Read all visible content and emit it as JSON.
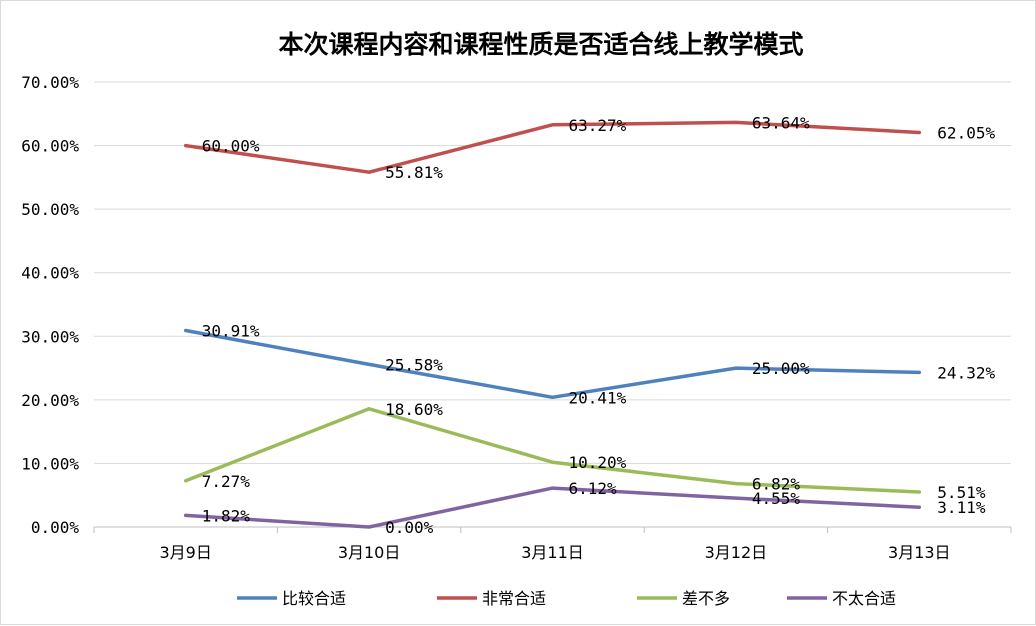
{
  "chart_data": {
    "type": "line",
    "title": "本次课程内容和课程性质是否适合线上教学模式",
    "xlabel": "",
    "ylabel": "",
    "categories": [
      "3月9日",
      "3月10日",
      "3月11日",
      "3月12日",
      "3月13日"
    ],
    "ylim": [
      0,
      70
    ],
    "yticks": [
      "0.00%",
      "10.00%",
      "20.00%",
      "30.00%",
      "40.00%",
      "50.00%",
      "60.00%",
      "70.00%"
    ],
    "grid": true,
    "legend_position": "bottom",
    "series": [
      {
        "name": "比较合适",
        "color": "#4f81bd",
        "values": [
          30.91,
          25.58,
          20.41,
          25.0,
          24.32
        ],
        "labels": [
          "30.91%",
          "25.58%",
          "20.41%",
          "25.00%",
          "24.32%"
        ]
      },
      {
        "name": "非常合适",
        "color": "#c0504d",
        "values": [
          60.0,
          55.81,
          63.27,
          63.64,
          62.05
        ],
        "labels": [
          "60.00%",
          "55.81%",
          "63.27%",
          "63.64%",
          "62.05%"
        ]
      },
      {
        "name": "差不多",
        "color": "#9bbb59",
        "values": [
          7.27,
          18.6,
          10.2,
          6.82,
          5.51
        ],
        "labels": [
          "7.27%",
          "18.60%",
          "10.20%",
          "6.82%",
          "5.51%"
        ]
      },
      {
        "name": "不太合适",
        "color": "#8064a2",
        "values": [
          1.82,
          0.0,
          6.12,
          4.55,
          3.11
        ],
        "labels": [
          "1.82%",
          "0.00%",
          "6.12%",
          "4.55%",
          "3.11%"
        ]
      }
    ]
  }
}
